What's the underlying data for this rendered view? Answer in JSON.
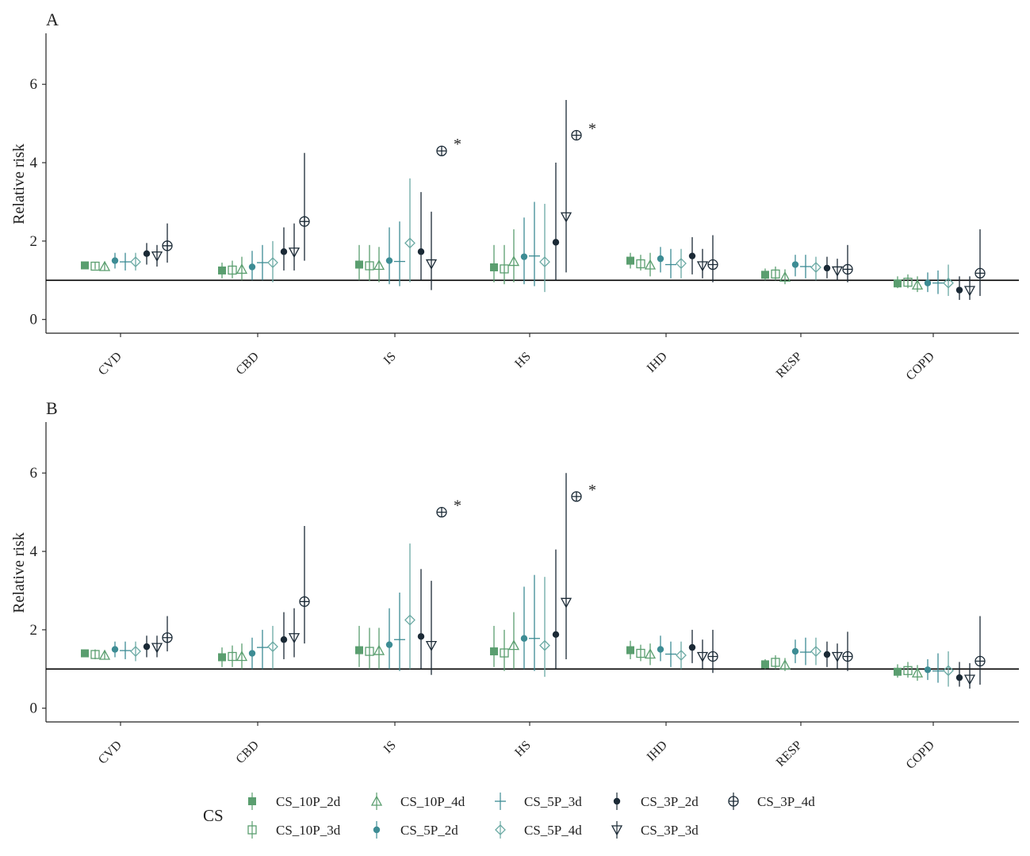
{
  "chart_data": [
    {
      "type": "errorbar",
      "panel": "A",
      "ylabel": "Relative risk",
      "xlabel": "",
      "ylim": [
        -0.35,
        7.3
      ],
      "yticks": [
        0,
        2,
        4,
        6
      ],
      "reference_line": 1,
      "categories": [
        "CVD",
        "CBD",
        "IS",
        "HS",
        "IHD",
        "RESP",
        "COPD"
      ],
      "series": [
        {
          "name": "CS_10P_2d",
          "values": [
            1.38,
            1.25,
            1.4,
            1.33,
            1.5,
            1.14,
            0.92
          ],
          "lower": [
            1.3,
            1.05,
            1.0,
            0.95,
            1.3,
            1.0,
            0.8
          ],
          "upper": [
            1.46,
            1.45,
            1.9,
            1.9,
            1.7,
            1.3,
            1.1
          ]
        },
        {
          "name": "CS_10P_3d",
          "values": [
            1.36,
            1.26,
            1.37,
            1.29,
            1.42,
            1.16,
            0.95
          ],
          "lower": [
            1.28,
            1.05,
            0.98,
            0.9,
            1.25,
            1.0,
            0.8
          ],
          "upper": [
            1.45,
            1.5,
            1.9,
            1.9,
            1.65,
            1.35,
            1.15
          ]
        },
        {
          "name": "CS_10P_4d",
          "values": [
            1.35,
            1.28,
            1.38,
            1.48,
            1.39,
            1.08,
            0.88
          ],
          "lower": [
            1.25,
            1.0,
            0.95,
            0.95,
            1.1,
            0.9,
            0.7
          ],
          "upper": [
            1.45,
            1.6,
            1.85,
            2.3,
            1.7,
            1.28,
            1.1
          ]
        },
        {
          "name": "CS_5P_2d",
          "values": [
            1.5,
            1.34,
            1.5,
            1.6,
            1.55,
            1.4,
            0.93
          ],
          "lower": [
            1.3,
            1.0,
            0.9,
            0.9,
            1.2,
            1.1,
            0.7
          ],
          "upper": [
            1.7,
            1.75,
            2.35,
            2.6,
            1.85,
            1.65,
            1.2
          ]
        },
        {
          "name": "CS_5P_3d",
          "values": [
            1.47,
            1.45,
            1.48,
            1.62,
            1.4,
            1.35,
            0.93
          ],
          "lower": [
            1.25,
            1.0,
            0.85,
            0.85,
            1.05,
            1.05,
            0.65
          ],
          "upper": [
            1.7,
            1.9,
            2.5,
            3.0,
            1.8,
            1.65,
            1.25
          ]
        },
        {
          "name": "CS_5P_4d",
          "values": [
            1.47,
            1.45,
            1.95,
            1.47,
            1.43,
            1.33,
            0.93
          ],
          "lower": [
            1.25,
            0.95,
            0.95,
            0.7,
            1.05,
            1.0,
            0.6
          ],
          "upper": [
            1.7,
            2.0,
            3.6,
            2.95,
            1.8,
            1.6,
            1.4
          ]
        },
        {
          "name": "CS_3P_2d",
          "values": [
            1.68,
            1.73,
            1.73,
            1.97,
            1.62,
            1.31,
            0.75
          ],
          "lower": [
            1.4,
            1.25,
            1.0,
            1.0,
            1.15,
            1.05,
            0.5
          ],
          "upper": [
            1.95,
            2.35,
            3.25,
            4.0,
            2.1,
            1.6,
            1.1
          ]
        },
        {
          "name": "CS_3P_3d",
          "values": [
            1.62,
            1.72,
            1.42,
            2.62,
            1.37,
            1.24,
            0.74
          ],
          "lower": [
            1.35,
            1.25,
            0.75,
            1.2,
            1.05,
            1.0,
            0.5
          ],
          "upper": [
            1.9,
            2.45,
            2.75,
            5.6,
            1.8,
            1.55,
            1.1
          ]
        },
        {
          "name": "CS_3P_4d",
          "values": [
            1.88,
            2.5,
            4.3,
            4.7,
            1.4,
            1.28,
            1.18
          ],
          "lower": [
            1.45,
            1.5,
            null,
            null,
            0.95,
            0.95,
            0.6
          ],
          "upper": [
            2.45,
            4.25,
            null,
            null,
            2.15,
            1.9,
            2.3
          ]
        }
      ],
      "annotations": [
        {
          "category": "IS",
          "series": "CS_3P_4d",
          "text": "*"
        },
        {
          "category": "HS",
          "series": "CS_3P_4d",
          "text": "*"
        }
      ]
    },
    {
      "type": "errorbar",
      "panel": "B",
      "ylabel": "Relative risk",
      "xlabel": "",
      "ylim": [
        -0.35,
        7.3
      ],
      "yticks": [
        0,
        2,
        4,
        6
      ],
      "reference_line": 1,
      "categories": [
        "CVD",
        "CBD",
        "IS",
        "HS",
        "IHD",
        "RESP",
        "COPD"
      ],
      "series": [
        {
          "name": "CS_10P_2d",
          "values": [
            1.4,
            1.3,
            1.48,
            1.45,
            1.48,
            1.12,
            0.93
          ],
          "lower": [
            1.3,
            1.05,
            1.05,
            1.05,
            1.25,
            1.0,
            0.78
          ],
          "upper": [
            1.5,
            1.55,
            2.1,
            2.1,
            1.72,
            1.25,
            1.12
          ]
        },
        {
          "name": "CS_10P_3d",
          "values": [
            1.37,
            1.32,
            1.45,
            1.41,
            1.4,
            1.17,
            0.96
          ],
          "lower": [
            1.25,
            1.05,
            1.0,
            0.95,
            1.2,
            1.0,
            0.78
          ],
          "upper": [
            1.5,
            1.6,
            2.05,
            2.0,
            1.62,
            1.35,
            1.18
          ]
        },
        {
          "name": "CS_10P_4d",
          "values": [
            1.35,
            1.32,
            1.47,
            1.6,
            1.38,
            1.1,
            0.9
          ],
          "lower": [
            1.25,
            1.0,
            1.0,
            1.0,
            1.1,
            0.95,
            0.7
          ],
          "upper": [
            1.45,
            1.65,
            2.05,
            2.45,
            1.65,
            1.28,
            1.1
          ]
        },
        {
          "name": "CS_5P_2d",
          "values": [
            1.5,
            1.4,
            1.62,
            1.78,
            1.5,
            1.45,
            0.98
          ],
          "lower": [
            1.3,
            1.0,
            1.0,
            1.0,
            1.2,
            1.15,
            0.72
          ],
          "upper": [
            1.7,
            1.8,
            2.55,
            3.1,
            1.85,
            1.75,
            1.25
          ]
        },
        {
          "name": "CS_5P_3d",
          "values": [
            1.47,
            1.55,
            1.75,
            1.78,
            1.38,
            1.43,
            0.95
          ],
          "lower": [
            1.25,
            1.0,
            0.95,
            0.95,
            1.05,
            1.1,
            0.65
          ],
          "upper": [
            1.7,
            2.0,
            2.95,
            3.4,
            1.7,
            1.8,
            1.4
          ]
        },
        {
          "name": "CS_5P_4d",
          "values": [
            1.45,
            1.57,
            2.25,
            1.6,
            1.35,
            1.45,
            0.96
          ],
          "lower": [
            1.2,
            1.0,
            1.0,
            0.8,
            1.0,
            1.1,
            0.55
          ],
          "upper": [
            1.7,
            2.1,
            4.2,
            3.35,
            1.7,
            1.8,
            1.45
          ]
        },
        {
          "name": "CS_3P_2d",
          "values": [
            1.57,
            1.75,
            1.83,
            1.88,
            1.55,
            1.37,
            0.78
          ],
          "lower": [
            1.3,
            1.25,
            1.0,
            1.0,
            1.15,
            1.05,
            0.55
          ],
          "upper": [
            1.85,
            2.45,
            3.55,
            4.05,
            2.0,
            1.7,
            1.18
          ]
        },
        {
          "name": "CS_3P_3d",
          "values": [
            1.55,
            1.8,
            1.6,
            2.7,
            1.32,
            1.32,
            0.74
          ],
          "lower": [
            1.3,
            1.3,
            0.85,
            1.25,
            1.0,
            1.0,
            0.5
          ],
          "upper": [
            1.85,
            2.55,
            3.25,
            6.0,
            1.75,
            1.65,
            1.15
          ]
        },
        {
          "name": "CS_3P_4d",
          "values": [
            1.8,
            2.72,
            5.0,
            5.4,
            1.32,
            1.32,
            1.2
          ],
          "lower": [
            1.45,
            1.65,
            null,
            null,
            0.9,
            0.95,
            0.6
          ],
          "upper": [
            2.35,
            4.65,
            null,
            null,
            2.0,
            1.95,
            2.35
          ]
        }
      ],
      "annotations": [
        {
          "category": "IS",
          "series": "CS_3P_4d",
          "text": "*"
        },
        {
          "category": "HS",
          "series": "CS_3P_4d",
          "text": "*"
        }
      ]
    }
  ],
  "legend": {
    "title": "CS",
    "items": [
      {
        "label": "CS_10P_2d",
        "shape": "filled-square",
        "color": "#5a9e6f"
      },
      {
        "label": "CS_10P_4d",
        "shape": "open-triangle-up",
        "color": "#5a9e6f"
      },
      {
        "label": "CS_5P_3d",
        "shape": "plus",
        "color": "#3d8c94"
      },
      {
        "label": "CS_3P_2d",
        "shape": "filled-circle",
        "color": "#1b2a36"
      },
      {
        "label": "CS_3P_4d",
        "shape": "circle-plus",
        "color": "#1b2a36"
      },
      {
        "label": "CS_10P_3d",
        "shape": "open-square",
        "color": "#5a9e6f"
      },
      {
        "label": "CS_5P_2d",
        "shape": "filled-circle",
        "color": "#3d8c94"
      },
      {
        "label": "CS_5P_4d",
        "shape": "open-diamond",
        "color": "#6aa9a3"
      },
      {
        "label": "CS_3P_3d",
        "shape": "open-triangle-down",
        "color": "#1b2a36"
      }
    ]
  }
}
